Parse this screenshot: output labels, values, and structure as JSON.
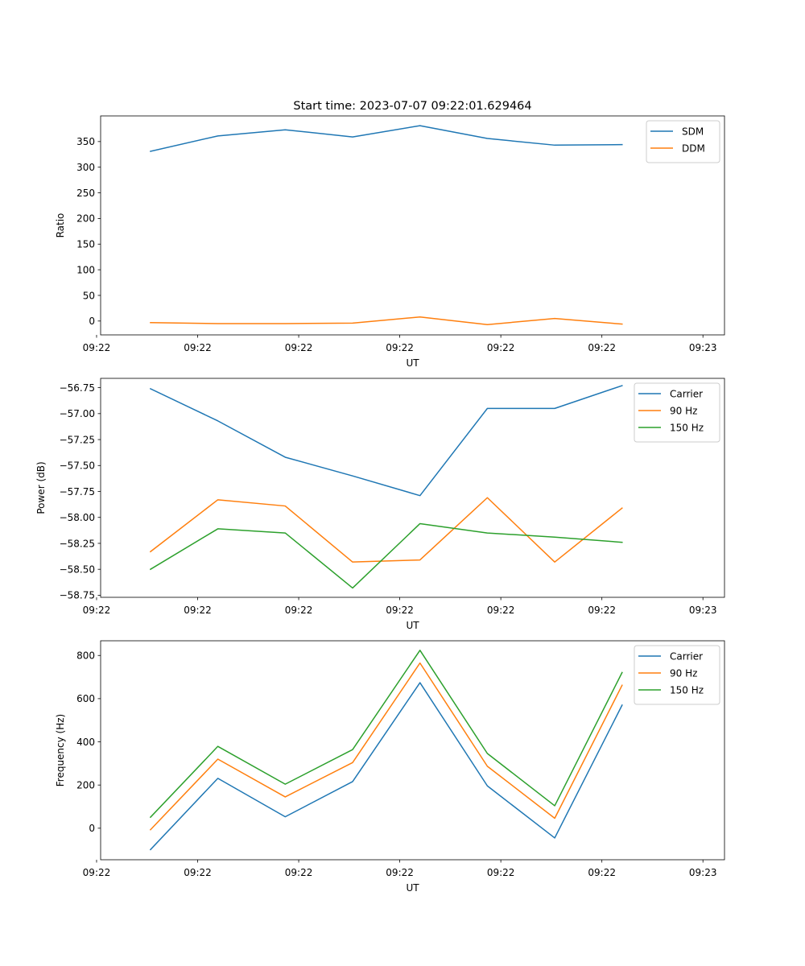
{
  "figure": {
    "title": "Start time: 2023-07-07 09:22:01.629464"
  },
  "chart_data": [
    {
      "type": "line",
      "title": "Start time: 2023-07-07 09:22:01.629464",
      "xlabel": "UT",
      "ylabel": "Ratio",
      "x": [
        1,
        2,
        3,
        4,
        5,
        6,
        7,
        8
      ],
      "xlim": [
        0.26,
        9.52
      ],
      "xticks": [
        {
          "v": 0.2,
          "label": "09:22"
        },
        {
          "v": 1.7,
          "label": "09:22"
        },
        {
          "v": 3.2,
          "label": "09:22"
        },
        {
          "v": 4.7,
          "label": "09:22"
        },
        {
          "v": 6.2,
          "label": "09:22"
        },
        {
          "v": 7.7,
          "label": "09:22"
        },
        {
          "v": 9.2,
          "label": "09:23"
        }
      ],
      "ylim": [
        -27,
        400
      ],
      "yticks": [
        {
          "v": 0,
          "label": "0"
        },
        {
          "v": 50,
          "label": "50"
        },
        {
          "v": 100,
          "label": "100"
        },
        {
          "v": 150,
          "label": "150"
        },
        {
          "v": 200,
          "label": "200"
        },
        {
          "v": 250,
          "label": "250"
        },
        {
          "v": 300,
          "label": "300"
        },
        {
          "v": 350,
          "label": "350"
        }
      ],
      "legend": "top-right",
      "series": [
        {
          "name": "SDM",
          "color": "#1f77b4",
          "values": [
            331,
            361,
            373,
            359,
            381,
            356,
            343,
            344
          ]
        },
        {
          "name": "DDM",
          "color": "#ff7f0e",
          "values": [
            -3,
            -5,
            -5,
            -4,
            8,
            -7,
            5,
            -6
          ]
        }
      ]
    },
    {
      "type": "line",
      "xlabel": "UT",
      "ylabel": "Power (dB)",
      "x": [
        1,
        2,
        3,
        4,
        5,
        6,
        7,
        8
      ],
      "xlim": [
        0.26,
        9.52
      ],
      "xticks": [
        {
          "v": 0.2,
          "label": "09:22"
        },
        {
          "v": 1.7,
          "label": "09:22"
        },
        {
          "v": 3.2,
          "label": "09:22"
        },
        {
          "v": 4.7,
          "label": "09:22"
        },
        {
          "v": 6.2,
          "label": "09:22"
        },
        {
          "v": 7.7,
          "label": "09:22"
        },
        {
          "v": 9.2,
          "label": "09:23"
        }
      ],
      "ylim": [
        -58.77,
        -56.66
      ],
      "yticks": [
        {
          "v": -56.75,
          "label": "−56.75"
        },
        {
          "v": -57.0,
          "label": "−57.00"
        },
        {
          "v": -57.25,
          "label": "−57.25"
        },
        {
          "v": -57.5,
          "label": "−57.50"
        },
        {
          "v": -57.75,
          "label": "−57.75"
        },
        {
          "v": -58.0,
          "label": "−58.00"
        },
        {
          "v": -58.25,
          "label": "−58.25"
        },
        {
          "v": -58.5,
          "label": "−58.50"
        },
        {
          "v": -58.75,
          "label": "−58.75"
        }
      ],
      "legend": "top-right",
      "series": [
        {
          "name": "Carrier",
          "color": "#1f77b4",
          "values": [
            -56.76,
            -57.07,
            -57.42,
            -57.6,
            -57.79,
            -56.95,
            -56.95,
            -56.73
          ]
        },
        {
          "name": "90 Hz",
          "color": "#ff7f0e",
          "values": [
            -58.33,
            -57.83,
            -57.89,
            -58.43,
            -58.41,
            -57.81,
            -58.43,
            -57.91
          ]
        },
        {
          "name": "150 Hz",
          "color": "#2ca02c",
          "values": [
            -58.5,
            -58.11,
            -58.15,
            -58.68,
            -58.06,
            -58.15,
            -58.19,
            -58.24
          ]
        }
      ]
    },
    {
      "type": "line",
      "xlabel": "UT",
      "ylabel": "Frequency (Hz)",
      "x": [
        1,
        2,
        3,
        4,
        5,
        6,
        7,
        8
      ],
      "xlim": [
        0.26,
        9.52
      ],
      "xticks": [
        {
          "v": 0.2,
          "label": "09:22"
        },
        {
          "v": 1.7,
          "label": "09:22"
        },
        {
          "v": 3.2,
          "label": "09:22"
        },
        {
          "v": 4.7,
          "label": "09:22"
        },
        {
          "v": 6.2,
          "label": "09:22"
        },
        {
          "v": 7.7,
          "label": "09:22"
        },
        {
          "v": 9.2,
          "label": "09:23"
        }
      ],
      "ylim": [
        -146,
        868
      ],
      "yticks": [
        {
          "v": 0,
          "label": "0"
        },
        {
          "v": 200,
          "label": "200"
        },
        {
          "v": 400,
          "label": "400"
        },
        {
          "v": 600,
          "label": "600"
        },
        {
          "v": 800,
          "label": "800"
        }
      ],
      "legend": "top-right",
      "series": [
        {
          "name": "Carrier",
          "color": "#1f77b4",
          "values": [
            -99,
            231,
            53,
            216,
            674,
            196,
            -45,
            570
          ]
        },
        {
          "name": "90 Hz",
          "color": "#ff7f0e",
          "values": [
            -7,
            320,
            145,
            304,
            765,
            287,
            46,
            662
          ]
        },
        {
          "name": "150 Hz",
          "color": "#2ca02c",
          "values": [
            51,
            379,
            204,
            364,
            824,
            346,
            104,
            721
          ]
        }
      ]
    }
  ]
}
